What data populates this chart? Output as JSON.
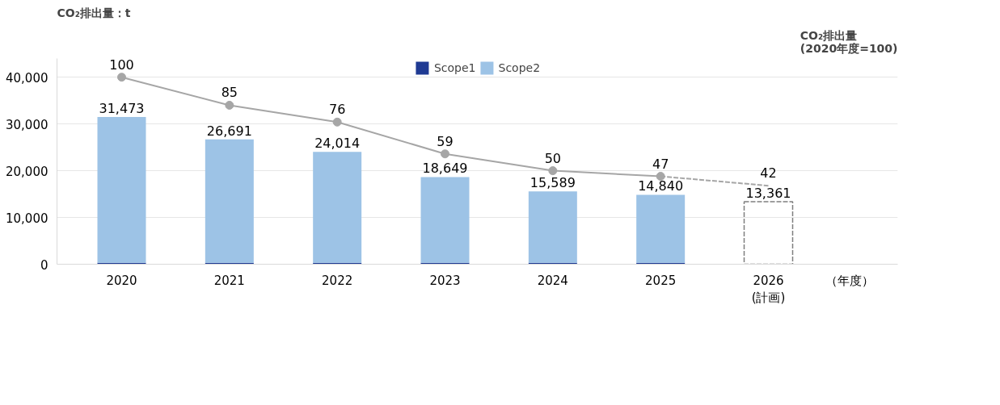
{
  "chart_data": {
    "type": "bar",
    "stacked": true,
    "ylabel": "CO₂排出量：t",
    "y2label": "CO₂排出量\n(2020年度=100)",
    "xlabel": "（年度）",
    "categories": [
      "2020",
      "2021",
      "2022",
      "2023",
      "2024",
      "2025",
      "2026\n(計画)"
    ],
    "series": [
      {
        "name": "Scope1",
        "color": "#1f3a93",
        "values": [
          300,
          300,
          300,
          300,
          300,
          300,
          null
        ]
      },
      {
        "name": "Scope2",
        "color": "#9dc3e6",
        "values": [
          31173,
          26391,
          23714,
          18349,
          15289,
          14540,
          null
        ]
      },
      {
        "color": "#7f7f7f",
        "line_style": "dashed",
        "values": [
          null,
          null,
          null,
          null,
          null,
          null,
          13361
        ]
      },
      {
        "type": "line",
        "axis": "y2",
        "color": "#a6a6a6",
        "marker": "circle",
        "line_style": "solid",
        "values": [
          100,
          85,
          76,
          59,
          50,
          47,
          null
        ],
        "value_labels": [
          "100",
          "85",
          "76",
          "59",
          "50",
          "47",
          null
        ]
      },
      {
        "type": "line",
        "axis": "y2",
        "color": "#a6a6a6",
        "marker": "none",
        "line_style": "dashed",
        "values": [
          null,
          null,
          null,
          null,
          null,
          47,
          42
        ],
        "value_labels": [
          null,
          null,
          null,
          null,
          null,
          null,
          "42"
        ]
      }
    ],
    "totals": [
      "31,473",
      "26,691",
      "24,014",
      "18,649",
      "15,589",
      "14,840",
      "13,361"
    ],
    "ylim": [
      0,
      44000
    ],
    "yticks": [
      0,
      {
        "value": 10000,
        "label": "10,000"
      },
      {
        "value": 20000,
        "label": "20,000"
      },
      {
        "value": 30000,
        "label": "30,000"
      },
      {
        "value": 40000,
        "label": "40,000"
      }
    ],
    "y2lim": [
      0,
      110
    ],
    "grid": "y",
    "legend": "top"
  }
}
